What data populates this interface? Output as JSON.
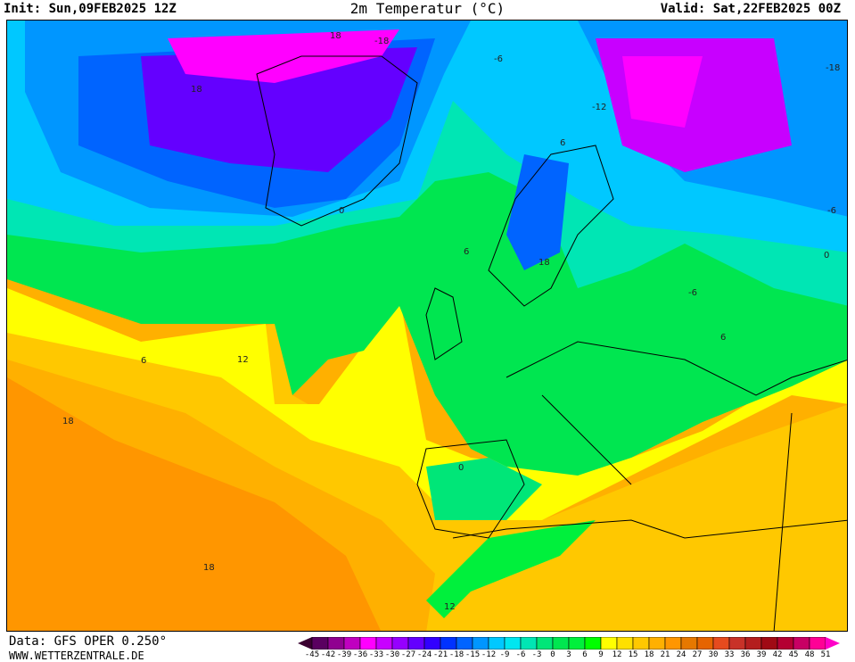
{
  "header": {
    "init": "Init: Sun,09FEB2025 12Z",
    "title": "2m Temperatur (°C)",
    "valid": "Valid: Sat,22FEB2025 00Z"
  },
  "footer": {
    "data_source": "Data: GFS OPER 0.250°",
    "website": "WWW.WETTERZENTRALE.DE"
  },
  "colorbar": {
    "unit": "°C",
    "ticks": [
      "-45",
      "-42",
      "-39",
      "-36",
      "-33",
      "-30",
      "-27",
      "-24",
      "-21",
      "-18",
      "-15",
      "-12",
      "-9",
      "-6",
      "-3",
      "0",
      "3",
      "6",
      "9",
      "12",
      "15",
      "18",
      "21",
      "24",
      "27",
      "30",
      "33",
      "36",
      "39",
      "42",
      "45",
      "48",
      "51"
    ],
    "low_arrow_color": "#3a0030",
    "high_arrow_color": "#ff00c8",
    "colors": [
      "#5a0060",
      "#900090",
      "#c000c0",
      "#ff00ff",
      "#c800ff",
      "#9600ff",
      "#6400ff",
      "#3200ff",
      "#0032ff",
      "#0064ff",
      "#0096ff",
      "#00c8ff",
      "#00e6f0",
      "#00e6b4",
      "#00e678",
      "#00e650",
      "#00f03c",
      "#00ff00",
      "#ffff00",
      "#ffe000",
      "#ffc800",
      "#ffb000",
      "#ff9600",
      "#e67800",
      "#e66400",
      "#e64b1e",
      "#c83228",
      "#b41e1e",
      "#a00a14",
      "#b40032",
      "#c80064",
      "#ff0096"
    ]
  },
  "map": {
    "contour_labels": [
      "18",
      "18",
      "-18",
      "-6",
      "-18",
      "-6",
      "0",
      "6",
      "18",
      "-12",
      "6",
      "0",
      "-6",
      "6",
      "12",
      "18",
      "18",
      "6",
      "12",
      "0"
    ]
  }
}
